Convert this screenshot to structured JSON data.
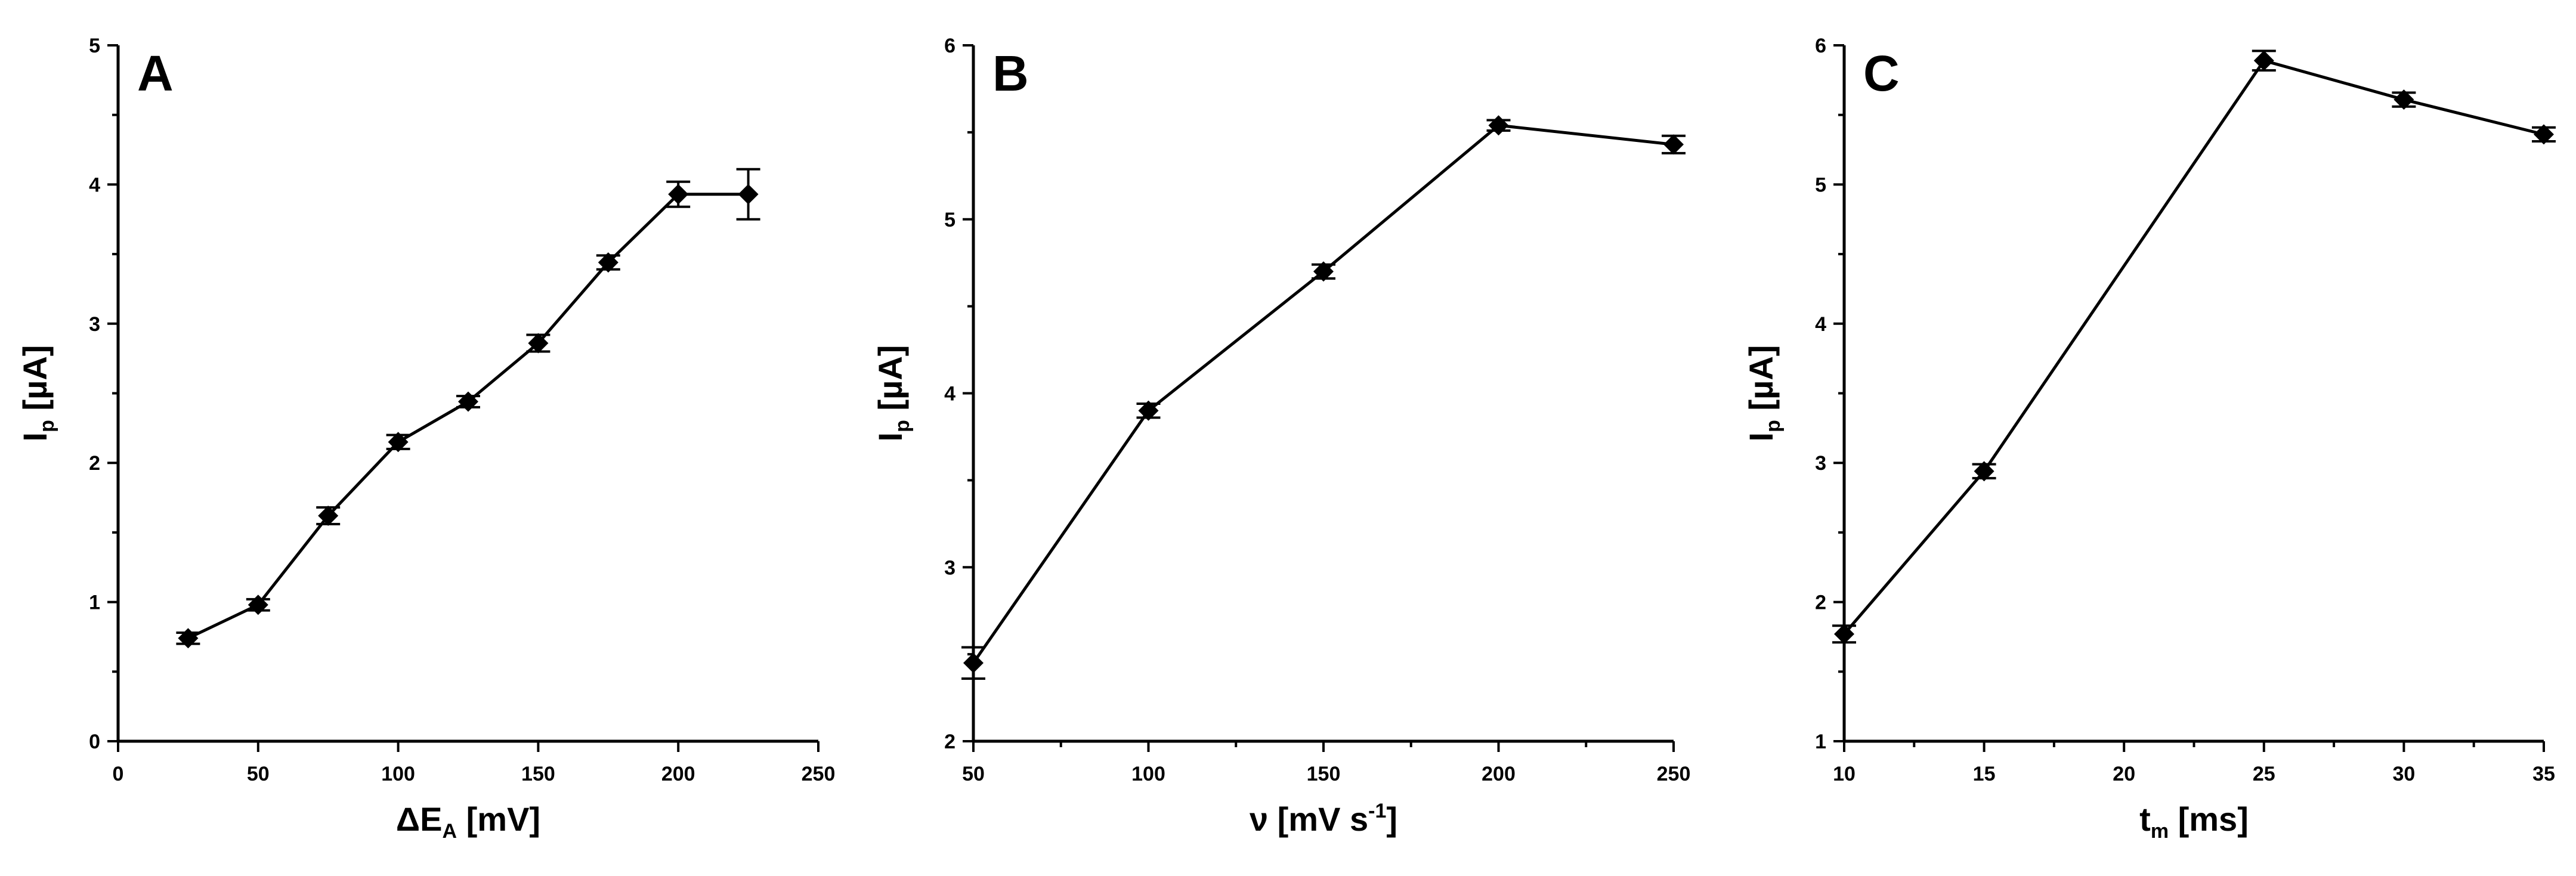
{
  "chart_data": [
    {
      "type": "line",
      "panel_label": "A",
      "x": [
        25,
        50,
        75,
        100,
        125,
        150,
        175,
        200,
        225
      ],
      "y": [
        0.74,
        0.98,
        1.62,
        2.15,
        2.44,
        2.86,
        3.44,
        3.93,
        3.93
      ],
      "y_err": [
        0.04,
        0.04,
        0.06,
        0.05,
        0.04,
        0.06,
        0.05,
        0.09,
        0.18
      ],
      "xlim": [
        0,
        250
      ],
      "ylim": [
        0,
        5
      ],
      "xticks": [
        "0",
        "50",
        "100",
        "150",
        "200",
        "250"
      ],
      "yticks": [
        "0",
        "1",
        "2",
        "3",
        "4",
        "5"
      ],
      "xlabel": {
        "main": "ΔE",
        "sub": "A",
        "unit": " [mV]"
      },
      "ylabel": {
        "main": "I",
        "sub": "p",
        "unit": " [µA]"
      }
    },
    {
      "type": "line",
      "panel_label": "B",
      "x": [
        50,
        100,
        150,
        200,
        250
      ],
      "y": [
        2.45,
        3.9,
        4.7,
        5.54,
        5.43
      ],
      "y_err": [
        0.09,
        0.04,
        0.04,
        0.03,
        0.05
      ],
      "xlim": [
        50,
        250
      ],
      "ylim": [
        2,
        6
      ],
      "xticks": [
        "50",
        "100",
        "150",
        "200",
        "250"
      ],
      "yticks": [
        "2",
        "3",
        "4",
        "5",
        "6"
      ],
      "xlabel": {
        "main": "ν [mV s",
        "sup": "-1",
        "unit": "]"
      },
      "ylabel": {
        "main": "I",
        "sub": "p",
        "unit": " [µA]"
      }
    },
    {
      "type": "line",
      "panel_label": "C",
      "x": [
        10,
        15,
        25,
        30,
        35
      ],
      "y": [
        1.77,
        2.94,
        5.89,
        5.61,
        5.36
      ],
      "y_err": [
        0.06,
        0.05,
        0.07,
        0.05,
        0.05
      ],
      "xlim": [
        10,
        35
      ],
      "ylim": [
        1,
        6
      ],
      "xticks": [
        "10",
        "15",
        "20",
        "25",
        "30",
        "35"
      ],
      "yticks": [
        "1",
        "2",
        "3",
        "4",
        "5",
        "6"
      ],
      "xlabel": {
        "main": "t",
        "sub": "m",
        "unit": " [ms]"
      },
      "ylabel": {
        "main": "I",
        "sub": "p",
        "unit": " [µA]"
      }
    }
  ]
}
